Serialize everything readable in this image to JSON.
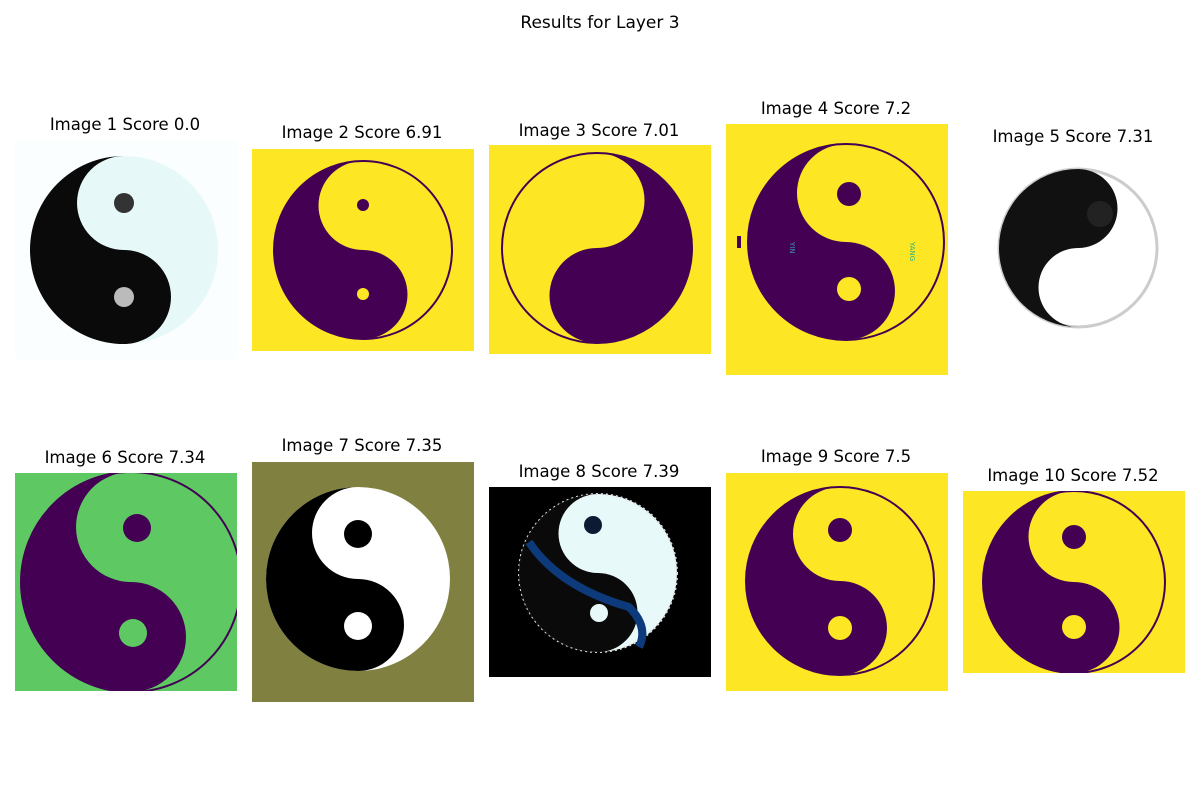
{
  "title": "Results for Layer 3",
  "colors": {
    "purple": "#440154",
    "yellow": "#fde725",
    "green": "#5ec962",
    "olive": "#808040",
    "black": "#000000",
    "white": "#ffffff",
    "pale_cyan": "#e6f8f8",
    "navy": "#0d3a7a"
  },
  "images": [
    {
      "label": "Image 1 Score 0.0"
    },
    {
      "label": "Image 2 Score 6.91"
    },
    {
      "label": "Image 3 Score 7.01"
    },
    {
      "label": "Image 4 Score 7.2",
      "inner_text": [
        "YIN",
        "YANG"
      ]
    },
    {
      "label": "Image 5 Score 7.31"
    },
    {
      "label": "Image 6 Score 7.34"
    },
    {
      "label": "Image 7 Score 7.35"
    },
    {
      "label": "Image 8 Score 7.39"
    },
    {
      "label": "Image 9 Score 7.5"
    },
    {
      "label": "Image 10 Score 7.52"
    }
  ]
}
